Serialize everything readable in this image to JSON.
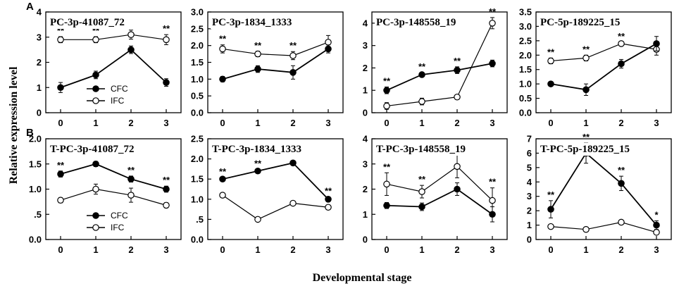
{
  "figure": {
    "row_labels": [
      "A",
      "B"
    ],
    "ylabel": "Relative expression level",
    "xlabel": "Developmental  stage",
    "colors": {
      "cfc": "#000000",
      "ifc": "#ffffff",
      "stroke": "#000000"
    }
  },
  "chart_data": [
    {
      "type": "line",
      "title": "PC-3p-41087_72",
      "row": 0,
      "col": 0,
      "categories": [
        "0",
        "1",
        "2",
        "3"
      ],
      "ylim": [
        0,
        4
      ],
      "yticks": [
        0,
        1,
        2,
        3,
        4
      ],
      "ytick_labels": [
        "0",
        "1",
        "2",
        "3",
        "4"
      ],
      "series": [
        {
          "name": "CFC",
          "values": [
            1.0,
            1.5,
            2.5,
            1.2
          ],
          "errors": [
            0.2,
            0.15,
            0.15,
            0.15
          ]
        },
        {
          "name": "IFC",
          "values": [
            2.9,
            2.9,
            3.1,
            2.9
          ],
          "errors": [
            0.12,
            0.12,
            0.18,
            0.2
          ]
        }
      ],
      "significance": [
        "**",
        "**",
        "",
        "**"
      ],
      "legend": "inside-lower-left"
    },
    {
      "type": "line",
      "title": "PC-3p-1834_1333",
      "row": 0,
      "col": 1,
      "categories": [
        "0",
        "1",
        "2",
        "3"
      ],
      "ylim": [
        0,
        3
      ],
      "yticks": [
        0,
        0.5,
        1,
        1.5,
        2,
        2.5,
        3
      ],
      "ytick_labels": [
        "0.0",
        "0.5",
        "1.0",
        "1.5",
        "2.0",
        "2.5",
        "3.0"
      ],
      "series": [
        {
          "name": "CFC",
          "values": [
            1.0,
            1.3,
            1.2,
            1.9
          ],
          "errors": [
            0.08,
            0.1,
            0.2,
            0.12
          ]
        },
        {
          "name": "IFC",
          "values": [
            1.9,
            1.75,
            1.7,
            2.1
          ],
          "errors": [
            0.12,
            0.08,
            0.12,
            0.2
          ]
        }
      ],
      "significance": [
        "**",
        "**",
        "**",
        ""
      ]
    },
    {
      "type": "line",
      "title": "PC-3p-148558_19",
      "row": 0,
      "col": 2,
      "categories": [
        "0",
        "1",
        "2",
        "3"
      ],
      "ylim": [
        0,
        4.5
      ],
      "yticks": [
        0,
        1,
        2,
        3,
        4
      ],
      "ytick_labels": [
        "0",
        "1",
        "2",
        "3",
        "4"
      ],
      "series": [
        {
          "name": "CFC",
          "values": [
            1.0,
            1.7,
            1.9,
            2.2
          ],
          "errors": [
            0.15,
            0.1,
            0.15,
            0.15
          ]
        },
        {
          "name": "IFC",
          "values": [
            0.3,
            0.5,
            0.7,
            4.0
          ],
          "errors": [
            0.15,
            0.15,
            0.1,
            0.25
          ]
        }
      ],
      "significance": [
        "**",
        "**",
        "**",
        "**"
      ]
    },
    {
      "type": "line",
      "title": "PC-5p-189225_15",
      "row": 0,
      "col": 3,
      "categories": [
        "0",
        "1",
        "2",
        "3"
      ],
      "ylim": [
        0,
        3.5
      ],
      "yticks": [
        0,
        0.5,
        1,
        1.5,
        2,
        2.5,
        3,
        3.5
      ],
      "ytick_labels": [
        "0.0",
        "0.5",
        "1.0",
        "1.5",
        "2.0",
        "2.5",
        "3.0",
        "3.5"
      ],
      "series": [
        {
          "name": "CFC",
          "values": [
            1.0,
            0.8,
            1.7,
            2.4
          ],
          "errors": [
            0.08,
            0.2,
            0.15,
            0.25
          ]
        },
        {
          "name": "IFC",
          "values": [
            1.8,
            1.9,
            2.4,
            2.2
          ],
          "errors": [
            0.1,
            0.1,
            0.05,
            0.2
          ]
        }
      ],
      "significance": [
        "**",
        "**",
        "**",
        ""
      ]
    },
    {
      "type": "line",
      "title": "T-PC-3p-41087_72",
      "row": 1,
      "col": 0,
      "categories": [
        "0",
        "1",
        "2",
        "3"
      ],
      "ylim": [
        0,
        2
      ],
      "yticks": [
        0,
        0.5,
        1,
        1.5,
        2
      ],
      "ytick_labels": [
        "0.0",
        ".5",
        "1.0",
        "1.5",
        "2.0"
      ],
      "series": [
        {
          "name": "CFC",
          "values": [
            1.3,
            1.5,
            1.2,
            1.0
          ],
          "errors": [
            0.06,
            0.05,
            0.06,
            0.06
          ]
        },
        {
          "name": "IFC",
          "values": [
            0.78,
            1.0,
            0.88,
            0.68
          ],
          "errors": [
            0.05,
            0.1,
            0.14,
            0.05
          ]
        }
      ],
      "significance": [
        "**",
        "**",
        "**",
        "**"
      ],
      "legend": "inside-lower-left"
    },
    {
      "type": "line",
      "title": "T-PC-3p-1834_1333",
      "row": 1,
      "col": 1,
      "categories": [
        "0",
        "1",
        "2",
        "3"
      ],
      "ylim": [
        0,
        2.5
      ],
      "yticks": [
        0,
        0.5,
        1,
        1.5,
        2,
        2.5
      ],
      "ytick_labels": [
        "0.0",
        ".5",
        "1.0",
        "1.5",
        "2.0",
        "2.5"
      ],
      "series": [
        {
          "name": "CFC",
          "values": [
            1.5,
            1.7,
            1.9,
            1.0
          ],
          "errors": [
            0.04,
            0.04,
            0.04,
            0.06
          ]
        },
        {
          "name": "IFC",
          "values": [
            1.1,
            0.5,
            0.9,
            0.8
          ],
          "errors": [
            0.04,
            0.03,
            0.05,
            0.05
          ]
        }
      ],
      "significance": [
        "**",
        "**",
        "**",
        "**"
      ]
    },
    {
      "type": "line",
      "title": "T-PC-3p-148558_19",
      "row": 1,
      "col": 2,
      "categories": [
        "0",
        "1",
        "2",
        "3"
      ],
      "ylim": [
        0,
        4
      ],
      "yticks": [
        0,
        1,
        2,
        3,
        4
      ],
      "ytick_labels": [
        "0",
        "1",
        "2",
        "3",
        "4"
      ],
      "series": [
        {
          "name": "CFC",
          "values": [
            1.35,
            1.3,
            2.0,
            1.0
          ],
          "errors": [
            0.12,
            0.15,
            0.25,
            0.3
          ]
        },
        {
          "name": "IFC",
          "values": [
            2.2,
            1.9,
            2.9,
            1.55
          ],
          "errors": [
            0.45,
            0.25,
            0.45,
            0.5
          ]
        }
      ],
      "significance": [
        "**",
        "**",
        "**",
        "**"
      ]
    },
    {
      "type": "line",
      "title": "T-PC-5p-189225_15",
      "row": 1,
      "col": 3,
      "categories": [
        "0",
        "1",
        "2",
        "3"
      ],
      "ylim": [
        0,
        7
      ],
      "yticks": [
        0,
        1,
        2,
        3,
        4,
        5,
        6,
        7
      ],
      "ytick_labels": [
        "0",
        "1",
        "2",
        "3",
        "4",
        "5",
        "6",
        "7"
      ],
      "series": [
        {
          "name": "CFC",
          "values": [
            2.1,
            6.0,
            3.9,
            1.0
          ],
          "errors": [
            0.6,
            0.7,
            0.5,
            0.3
          ]
        },
        {
          "name": "IFC",
          "values": [
            0.9,
            0.7,
            1.2,
            0.5
          ],
          "errors": [
            0.05,
            0.05,
            0.08,
            0.05
          ]
        }
      ],
      "significance": [
        "**",
        "**",
        "**",
        "*"
      ]
    }
  ]
}
